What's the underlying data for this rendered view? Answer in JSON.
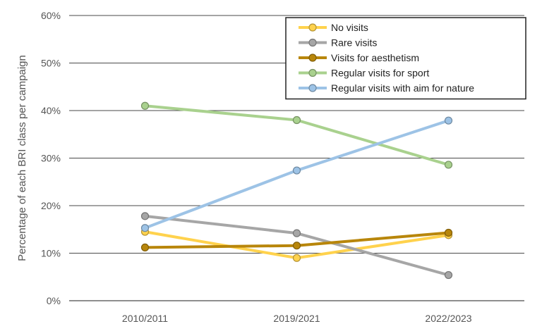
{
  "chart_data": {
    "type": "line",
    "title": "",
    "xlabel": "",
    "ylabel": "Percentage of each BRI class per campaign",
    "categories": [
      "2010/2011",
      "2019/2021",
      "2022/2023"
    ],
    "ylim": [
      0,
      60
    ],
    "yticks": [
      "0%",
      "10%",
      "20%",
      "30%",
      "40%",
      "50%",
      "60%"
    ],
    "grid": "horizontal",
    "legend_position": "top-right",
    "series": [
      {
        "name": "No visits",
        "color": "#FFD24D",
        "values": [
          14.5,
          9.0,
          13.8
        ]
      },
      {
        "name": "Rare visits",
        "color": "#A6A6A6",
        "values": [
          17.8,
          14.2,
          5.4
        ]
      },
      {
        "name": "Visits for aesthetism",
        "color": "#B8860B",
        "values": [
          11.2,
          11.6,
          14.3
        ]
      },
      {
        "name": "Regular visits for sport",
        "color": "#A9D18E",
        "values": [
          41.0,
          38.0,
          28.6
        ]
      },
      {
        "name": "Regular visits with aim for nature",
        "color": "#9DC3E6",
        "values": [
          15.3,
          27.4,
          37.9
        ]
      }
    ]
  }
}
